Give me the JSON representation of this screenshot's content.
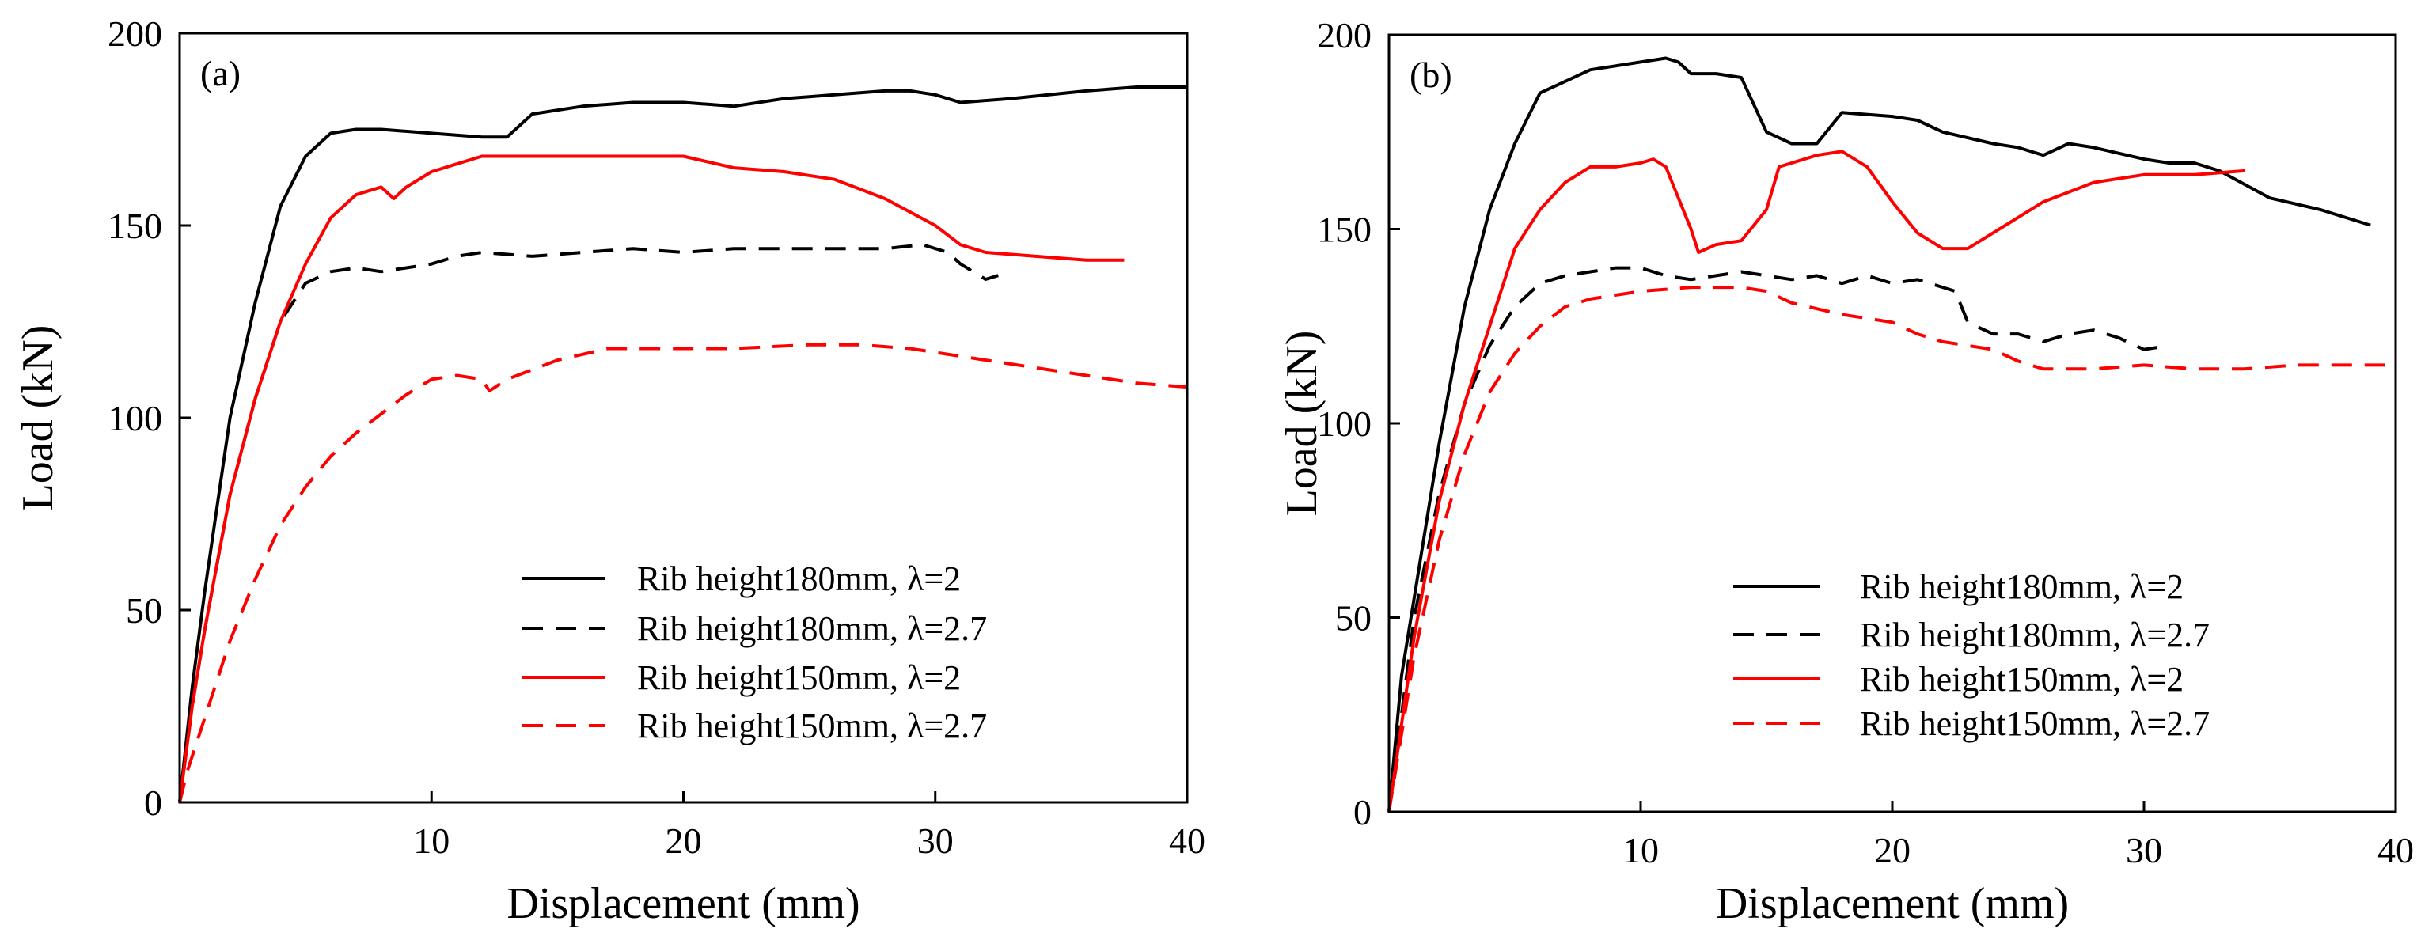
{
  "colors": {
    "black": "#000000",
    "red": "#ff0000"
  },
  "chart_data": [
    {
      "type": "line",
      "panel_label": "(a)",
      "xlabel": "Displacement (mm)",
      "ylabel": "Load (kN)",
      "xlim": [
        0,
        40
      ],
      "ylim": [
        0,
        200
      ],
      "xticks": [
        10,
        20,
        30,
        40
      ],
      "yticks": [
        0,
        50,
        100,
        150,
        200
      ],
      "xtick_labels": [
        "10",
        "20",
        "30",
        "40"
      ],
      "ytick_labels": [
        "0",
        "50",
        "100",
        "150",
        "200"
      ],
      "grid": false,
      "legend_position": "bottom-right",
      "series": [
        {
          "name": "Rib height180mm, λ=2",
          "color": "#000000",
          "dash": "solid",
          "points": [
            [
              0,
              0
            ],
            [
              0.5,
              30
            ],
            [
              1,
              55
            ],
            [
              2,
              100
            ],
            [
              3,
              130
            ],
            [
              4,
              155
            ],
            [
              5,
              168
            ],
            [
              6,
              174
            ],
            [
              7,
              175
            ],
            [
              8,
              175
            ],
            [
              10,
              174
            ],
            [
              12,
              173
            ],
            [
              13,
              173
            ],
            [
              14,
              179
            ],
            [
              16,
              181
            ],
            [
              18,
              182
            ],
            [
              20,
              182
            ],
            [
              22,
              181
            ],
            [
              24,
              183
            ],
            [
              26,
              184
            ],
            [
              28,
              185
            ],
            [
              29,
              185
            ],
            [
              30,
              184
            ],
            [
              31,
              182
            ],
            [
              33,
              183
            ],
            [
              36,
              185
            ],
            [
              38,
              186
            ],
            [
              40,
              186
            ]
          ]
        },
        {
          "name": "Rib height180mm, λ=2.7",
          "color": "#000000",
          "dash": "dashed",
          "points": [
            [
              0,
              0
            ],
            [
              0.5,
              25
            ],
            [
              1,
              45
            ],
            [
              2,
              80
            ],
            [
              3,
              105
            ],
            [
              4,
              125
            ],
            [
              5,
              135
            ],
            [
              6,
              138
            ],
            [
              7,
              139
            ],
            [
              8,
              138
            ],
            [
              9,
              139
            ],
            [
              10,
              140
            ],
            [
              11,
              142
            ],
            [
              12,
              143
            ],
            [
              14,
              142
            ],
            [
              16,
              143
            ],
            [
              18,
              144
            ],
            [
              20,
              143
            ],
            [
              22,
              144
            ],
            [
              24,
              144
            ],
            [
              26,
              144
            ],
            [
              28,
              144
            ],
            [
              29.5,
              145
            ],
            [
              30.5,
              143
            ],
            [
              31,
              140
            ],
            [
              32,
              136
            ],
            [
              32.5,
              137
            ]
          ]
        },
        {
          "name": "Rib height150mm, λ=2",
          "color": "#ff0000",
          "dash": "solid",
          "points": [
            [
              0,
              0
            ],
            [
              0.5,
              25
            ],
            [
              1,
              45
            ],
            [
              2,
              80
            ],
            [
              3,
              105
            ],
            [
              4,
              125
            ],
            [
              5,
              140
            ],
            [
              6,
              152
            ],
            [
              7,
              158
            ],
            [
              8,
              160
            ],
            [
              8.5,
              157
            ],
            [
              9,
              160
            ],
            [
              10,
              164
            ],
            [
              11,
              166
            ],
            [
              12,
              168
            ],
            [
              14,
              168
            ],
            [
              16,
              168
            ],
            [
              18,
              168
            ],
            [
              20,
              168
            ],
            [
              22,
              165
            ],
            [
              24,
              164
            ],
            [
              26,
              162
            ],
            [
              28,
              157
            ],
            [
              30,
              150
            ],
            [
              31,
              145
            ],
            [
              32,
              143
            ],
            [
              34,
              142
            ],
            [
              36,
              141
            ],
            [
              37.5,
              141
            ]
          ]
        },
        {
          "name": "Rib height150mm, λ=2.7",
          "color": "#ff0000",
          "dash": "dashed",
          "points": [
            [
              0,
              0
            ],
            [
              0.3,
              8
            ],
            [
              1,
              22
            ],
            [
              2,
              42
            ],
            [
              3,
              58
            ],
            [
              4,
              72
            ],
            [
              5,
              82
            ],
            [
              6,
              90
            ],
            [
              7,
              96
            ],
            [
              8,
              101
            ],
            [
              9,
              106
            ],
            [
              10,
              110
            ],
            [
              11,
              111
            ],
            [
              12,
              110
            ],
            [
              12.3,
              107
            ],
            [
              13,
              110
            ],
            [
              15,
              115
            ],
            [
              17,
              118
            ],
            [
              20,
              118
            ],
            [
              22,
              118
            ],
            [
              25,
              119
            ],
            [
              27,
              119
            ],
            [
              29,
              118
            ],
            [
              31,
              116
            ],
            [
              33,
              114
            ],
            [
              36,
              111
            ],
            [
              38,
              109
            ],
            [
              40,
              108
            ]
          ]
        }
      ]
    },
    {
      "type": "line",
      "panel_label": "(b)",
      "xlabel": "Displacement (mm)",
      "ylabel": "Load (kN)",
      "xlim": [
        0,
        40
      ],
      "ylim": [
        0,
        200
      ],
      "xticks": [
        10,
        20,
        30,
        40
      ],
      "yticks": [
        0,
        50,
        100,
        150,
        200
      ],
      "xtick_labels": [
        "10",
        "20",
        "30",
        "40"
      ],
      "ytick_labels": [
        "0",
        "50",
        "100",
        "150",
        "200"
      ],
      "grid": false,
      "legend_position": "bottom-right",
      "series": [
        {
          "name": "Rib height180mm, λ=2",
          "color": "#000000",
          "dash": "solid",
          "points": [
            [
              0,
              0
            ],
            [
              0.5,
              35
            ],
            [
              1,
              55
            ],
            [
              2,
              95
            ],
            [
              3,
              130
            ],
            [
              4,
              155
            ],
            [
              5,
              172
            ],
            [
              6,
              185
            ],
            [
              7,
              188
            ],
            [
              8,
              191
            ],
            [
              10,
              193
            ],
            [
              11,
              194
            ],
            [
              11.5,
              193
            ],
            [
              12,
              190
            ],
            [
              13,
              190
            ],
            [
              14,
              189
            ],
            [
              15,
              175
            ],
            [
              16,
              172
            ],
            [
              17,
              172
            ],
            [
              18,
              180
            ],
            [
              20,
              179
            ],
            [
              21,
              178
            ],
            [
              22,
              175
            ],
            [
              24,
              172
            ],
            [
              25,
              171
            ],
            [
              26,
              169
            ],
            [
              27,
              172
            ],
            [
              28,
              171
            ],
            [
              30,
              168
            ],
            [
              31,
              167
            ],
            [
              32,
              167
            ],
            [
              33,
              165
            ],
            [
              35,
              158
            ],
            [
              37,
              155
            ],
            [
              39,
              151
            ]
          ]
        },
        {
          "name": "Rib height180mm, λ=2.7",
          "color": "#000000",
          "dash": "dashed",
          "points": [
            [
              0,
              0
            ],
            [
              1,
              50
            ],
            [
              2,
              82
            ],
            [
              3,
              105
            ],
            [
              4,
              120
            ],
            [
              5,
              130
            ],
            [
              6,
              136
            ],
            [
              7,
              138
            ],
            [
              8,
              139
            ],
            [
              9,
              140
            ],
            [
              10,
              140
            ],
            [
              11,
              138
            ],
            [
              12,
              137
            ],
            [
              13,
              138
            ],
            [
              14,
              139
            ],
            [
              15,
              138
            ],
            [
              16,
              137
            ],
            [
              17,
              138
            ],
            [
              18,
              136
            ],
            [
              19,
              138
            ],
            [
              20,
              136
            ],
            [
              21,
              137
            ],
            [
              22,
              135
            ],
            [
              22.5,
              134
            ],
            [
              23,
              126
            ],
            [
              24,
              123
            ],
            [
              25,
              123
            ],
            [
              26,
              121
            ],
            [
              27,
              123
            ],
            [
              28,
              124
            ],
            [
              29,
              122
            ],
            [
              30,
              119
            ],
            [
              31,
              120
            ]
          ]
        },
        {
          "name": "Rib height150mm, λ=2",
          "color": "#ff0000",
          "dash": "solid",
          "points": [
            [
              0,
              0
            ],
            [
              1,
              45
            ],
            [
              2,
              80
            ],
            [
              3,
              105
            ],
            [
              4,
              125
            ],
            [
              5,
              145
            ],
            [
              6,
              155
            ],
            [
              7,
              162
            ],
            [
              8,
              166
            ],
            [
              9,
              166
            ],
            [
              10,
              167
            ],
            [
              10.5,
              168
            ],
            [
              11,
              166
            ],
            [
              12,
              150
            ],
            [
              12.3,
              144
            ],
            [
              13,
              146
            ],
            [
              14,
              147
            ],
            [
              15,
              155
            ],
            [
              15.5,
              166
            ],
            [
              17,
              169
            ],
            [
              18,
              170
            ],
            [
              19,
              166
            ],
            [
              20,
              157
            ],
            [
              21,
              149
            ],
            [
              22,
              145
            ],
            [
              23,
              145
            ],
            [
              24,
              149
            ],
            [
              25,
              153
            ],
            [
              26,
              157
            ],
            [
              28,
              162
            ],
            [
              30,
              164
            ],
            [
              32,
              164
            ],
            [
              34,
              165
            ]
          ]
        },
        {
          "name": "Rib height150mm, λ=2.7",
          "color": "#ff0000",
          "dash": "dashed",
          "points": [
            [
              0,
              0
            ],
            [
              1,
              40
            ],
            [
              2,
              70
            ],
            [
              3,
              92
            ],
            [
              4,
              108
            ],
            [
              5,
              118
            ],
            [
              6,
              125
            ],
            [
              7,
              130
            ],
            [
              8,
              132
            ],
            [
              10,
              134
            ],
            [
              12,
              135
            ],
            [
              14,
              135
            ],
            [
              15,
              134
            ],
            [
              16,
              131
            ],
            [
              18,
              128
            ],
            [
              20,
              126
            ],
            [
              21,
              123
            ],
            [
              22,
              121
            ],
            [
              23,
              120
            ],
            [
              24,
              119
            ],
            [
              25,
              116
            ],
            [
              26,
              114
            ],
            [
              28,
              114
            ],
            [
              30,
              115
            ],
            [
              32,
              114
            ],
            [
              34,
              114
            ],
            [
              36,
              115
            ],
            [
              40,
              115
            ]
          ]
        }
      ]
    }
  ]
}
